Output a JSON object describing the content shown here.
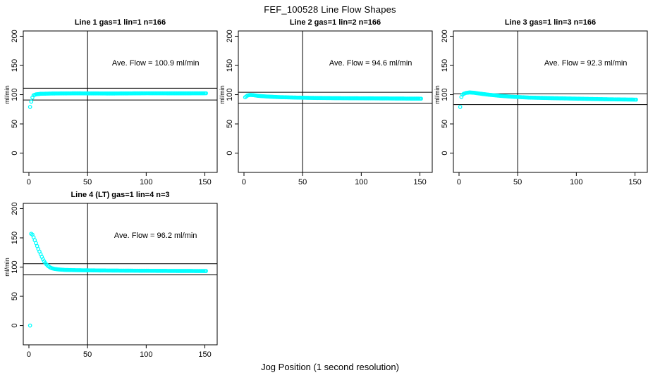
{
  "figure": {
    "title": "FEF_100528  Line Flow Shapes",
    "xlabel": "Jog Position (1 second resolution)"
  },
  "axes": {
    "ylabel": "ml/min",
    "x_ticks": [
      0,
      50,
      100,
      150
    ],
    "y_ticks": [
      0,
      50,
      100,
      150,
      200
    ],
    "xlim": [
      -4.8,
      160.5
    ],
    "ylim": [
      -33,
      209
    ],
    "grid": false
  },
  "marker": {
    "shape": "open-circle",
    "color": "#00ffff",
    "radius": 2.2
  },
  "chart_data": [
    {
      "type": "scatter",
      "title": "Line 1 gas=1 lin=1 n=166",
      "annotation": "Ave. Flow =  100.9  ml/min",
      "ave_flow_ml_min": 100.9,
      "n": 166,
      "vline_x": 50,
      "ref_hlines": [
        111.0,
        90.8
      ],
      "annotation_xy": [
        108,
        150
      ],
      "keypoints": [
        [
          1,
          79
        ],
        [
          2,
          88
        ],
        [
          3,
          95
        ],
        [
          4,
          99
        ],
        [
          6,
          100.5
        ],
        [
          10,
          101.5
        ],
        [
          20,
          102
        ],
        [
          40,
          102.3
        ],
        [
          70,
          102
        ],
        [
          100,
          102.4
        ],
        [
          130,
          102.3
        ],
        [
          151,
          102.4
        ]
      ]
    },
    {
      "type": "scatter",
      "title": "Line 2 gas=1 lin=2 n=166",
      "annotation": "Ave. Flow =  94.6  ml/min",
      "ave_flow_ml_min": 94.6,
      "n": 166,
      "vline_x": 50,
      "ref_hlines": [
        104.1,
        85.1
      ],
      "annotation_xy": [
        108,
        150
      ],
      "keypoints": [
        [
          1,
          95.5
        ],
        [
          2,
          97
        ],
        [
          3,
          98.5
        ],
        [
          5,
          99.5
        ],
        [
          8,
          99.2
        ],
        [
          12,
          98
        ],
        [
          20,
          96.8
        ],
        [
          30,
          95.8
        ],
        [
          45,
          95
        ],
        [
          60,
          94.4
        ],
        [
          80,
          94
        ],
        [
          100,
          93.8
        ],
        [
          125,
          93.5
        ],
        [
          151,
          93.2
        ]
      ]
    },
    {
      "type": "scatter",
      "title": "Line 3 gas=1 lin=3 n=166",
      "annotation": "Ave. Flow =  92.3  ml/min",
      "ave_flow_ml_min": 92.3,
      "n": 166,
      "vline_x": 50,
      "ref_hlines": [
        101.5,
        83.1
      ],
      "annotation_xy": [
        108,
        150
      ],
      "keypoints": [
        [
          1,
          79
        ],
        [
          2,
          96
        ],
        [
          3,
          100
        ],
        [
          4,
          101.5
        ],
        [
          6,
          103
        ],
        [
          9,
          103.8
        ],
        [
          13,
          103.2
        ],
        [
          18,
          101.8
        ],
        [
          25,
          100
        ],
        [
          35,
          98
        ],
        [
          45,
          96.5
        ],
        [
          60,
          95
        ],
        [
          80,
          94
        ],
        [
          100,
          93.2
        ],
        [
          125,
          92.2
        ],
        [
          151,
          91.5
        ]
      ]
    },
    {
      "type": "scatter",
      "title": "Line 4 (LT) gas=1 lin=4 n=3",
      "annotation": "Ave. Flow =  96.2  ml/min",
      "ave_flow_ml_min": 96.2,
      "n": 3,
      "vline_x": 50,
      "ref_hlines": [
        105.8,
        86.6
      ],
      "annotation_xy": [
        108,
        150
      ],
      "keypoints": [
        [
          1,
          0
        ],
        [
          2,
          157
        ],
        [
          3,
          155.5
        ],
        [
          4,
          151
        ],
        [
          5,
          146
        ],
        [
          6,
          141
        ],
        [
          7,
          136
        ],
        [
          8,
          131
        ],
        [
          9,
          126.5
        ],
        [
          10,
          122
        ],
        [
          11,
          117.5
        ],
        [
          12,
          113.5
        ],
        [
          13,
          110
        ],
        [
          14,
          107
        ],
        [
          15,
          104.5
        ],
        [
          16,
          102.5
        ],
        [
          17,
          101
        ],
        [
          18,
          99.5
        ],
        [
          19,
          98.5
        ],
        [
          20,
          97.8
        ],
        [
          22,
          96.8
        ],
        [
          25,
          96
        ],
        [
          30,
          95.2
        ],
        [
          40,
          94.7
        ],
        [
          60,
          94.2
        ],
        [
          90,
          93.8
        ],
        [
          120,
          93.5
        ],
        [
          151,
          93.3
        ]
      ]
    }
  ]
}
